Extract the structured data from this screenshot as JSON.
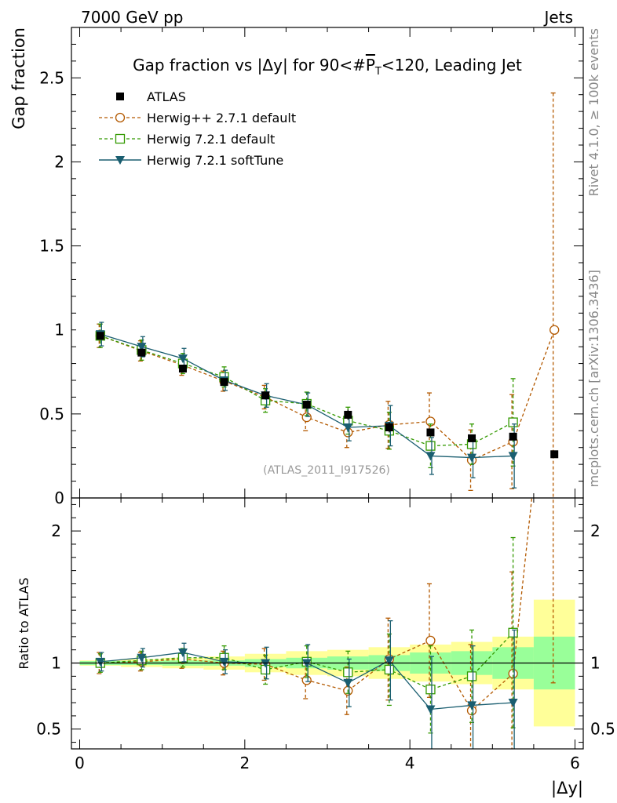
{
  "header": {
    "left": "7000 GeV pp",
    "right": "Jets"
  },
  "side_labels": {
    "rivet": "Rivet 4.1.0, ≥ 100k events",
    "mcplots": "mcplots.cern.ch [arXiv:1306.3436]"
  },
  "chart_data": {
    "type": "line",
    "title": "Gap fraction vs |Δy| for 90<#P_T<120, Leading Jet",
    "title_parts": {
      "pre": "Gap fraction vs |Δy| for 90<#",
      "p": "P",
      "t": "T",
      "post": "<120, Leading Jet"
    },
    "watermark": "(ATLAS_2011_I917526)",
    "xlabel": "|Δy|",
    "ylabel": "Gap fraction",
    "ratio_ylabel": "Ratio to ATLAS",
    "xlim": [
      -0.1,
      6.1
    ],
    "ylim": [
      0,
      2.8
    ],
    "ratio_ylim": [
      0.35,
      2.25
    ],
    "x_ticks": [
      0,
      2,
      4,
      6
    ],
    "y_ticks": [
      0.5,
      1,
      1.5,
      2,
      2.5
    ],
    "y_tick_labels": [
      "0.5",
      "1",
      "1.5",
      "2",
      "2.5"
    ],
    "y_zero_label": "0",
    "ratio_y_ticks": [
      0.5,
      1,
      2
    ],
    "ratio_y_tick_labels": [
      "0.5",
      "1",
      "2"
    ],
    "x": [
      0.25,
      0.75,
      1.25,
      1.75,
      2.25,
      2.75,
      3.25,
      3.75,
      4.25,
      4.75,
      5.25,
      5.75
    ],
    "data": {
      "name": "ATLAS",
      "color": "#000000",
      "values": [
        0.965,
        0.865,
        0.77,
        0.69,
        0.61,
        0.555,
        0.495,
        0.42,
        0.39,
        0.355,
        0.365,
        0.26
      ],
      "errors": [
        0.02,
        0.02,
        0.02,
        0.02,
        0.02,
        0.02,
        0.03,
        0.03,
        0.02,
        0.02,
        0.02,
        0.01
      ]
    },
    "band": {
      "inner": [
        0.015,
        0.015,
        0.02,
        0.02,
        0.03,
        0.04,
        0.05,
        0.06,
        0.08,
        0.09,
        0.12,
        0.2
      ],
      "outer": [
        0.02,
        0.03,
        0.04,
        0.05,
        0.07,
        0.09,
        0.1,
        0.12,
        0.14,
        0.16,
        0.2,
        0.48
      ],
      "inner_color": "#99ff99",
      "outer_color": "#ffff99"
    },
    "series": [
      {
        "name": "Herwig++ 2.7.1 default",
        "color": "#b35900",
        "marker": "circle",
        "dash": "4,3",
        "values": [
          0.965,
          0.875,
          0.79,
          0.695,
          0.6,
          0.48,
          0.39,
          0.435,
          0.455,
          0.225,
          0.335,
          1.0
        ],
        "errors": [
          0.07,
          0.06,
          0.06,
          0.06,
          0.07,
          0.08,
          0.09,
          0.14,
          0.17,
          0.18,
          0.28,
          1.41
        ],
        "ratio": [
          1.0,
          1.01,
          1.03,
          1.0,
          0.99,
          0.87,
          0.79,
          1.03,
          1.17,
          0.64,
          0.92,
          3.85
        ],
        "ratio_errors": [
          0.08,
          0.07,
          0.07,
          0.09,
          0.12,
          0.14,
          0.18,
          0.31,
          0.43,
          0.5,
          0.77,
          3.0
        ]
      },
      {
        "name": "Herwig 7.2.1 default",
        "color": "#339900",
        "marker": "square",
        "dash": "4,3",
        "values": [
          0.965,
          0.88,
          0.8,
          0.72,
          0.58,
          0.56,
          0.46,
          0.4,
          0.31,
          0.32,
          0.45,
          null
        ],
        "errors": [
          0.07,
          0.06,
          0.06,
          0.06,
          0.07,
          0.07,
          0.08,
          0.11,
          0.13,
          0.12,
          0.26,
          null
        ],
        "ratio": [
          1.0,
          1.02,
          1.04,
          1.04,
          0.95,
          1.01,
          0.93,
          0.95,
          0.8,
          0.9,
          1.23,
          null
        ],
        "ratio_errors": [
          0.07,
          0.07,
          0.07,
          0.09,
          0.11,
          0.12,
          0.16,
          0.27,
          0.33,
          0.35,
          0.72,
          null
        ]
      },
      {
        "name": "Herwig 7.2.1 softTune",
        "color": "#1a5e70",
        "marker": "triangle-down",
        "dash": "",
        "values": [
          0.975,
          0.9,
          0.83,
          0.7,
          0.61,
          0.555,
          0.42,
          0.43,
          0.25,
          0.24,
          0.25,
          null
        ],
        "errors": [
          0.07,
          0.06,
          0.06,
          0.06,
          0.07,
          0.07,
          0.08,
          0.12,
          0.11,
          0.12,
          0.19,
          null
        ],
        "ratio": [
          1.01,
          1.04,
          1.08,
          1.01,
          1.0,
          1.0,
          0.85,
          1.02,
          0.65,
          0.68,
          0.7,
          null
        ],
        "ratio_errors": [
          0.07,
          0.07,
          0.07,
          0.09,
          0.12,
          0.14,
          0.18,
          0.3,
          0.4,
          0.45,
          0.55,
          null
        ]
      }
    ],
    "legend_placement": "top-left"
  }
}
